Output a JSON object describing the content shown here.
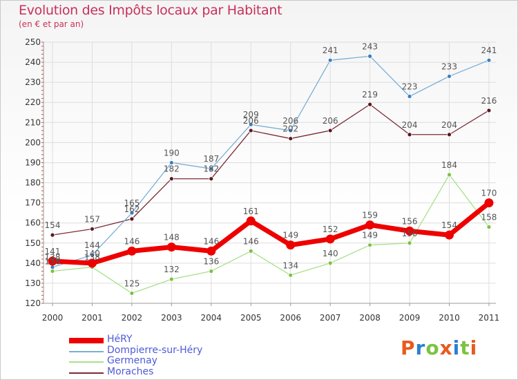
{
  "header": {
    "title": "Evolution des Impôts locaux par Habitant",
    "subtitle": "(en € et par an)"
  },
  "logo": {
    "text": "Proxiti",
    "colors": [
      "#e85a1e",
      "#2a7fd0",
      "#7cc242",
      "#e85a1e",
      "#2a7fd0",
      "#7cc242",
      "#e85a1e"
    ]
  },
  "chart_data": {
    "type": "line",
    "title": "Evolution des Impôts locaux par Habitant",
    "subtitle": "(en € et par an)",
    "xlabel": "",
    "ylabel": "",
    "ylim": [
      120,
      250
    ],
    "yticks": [
      "120",
      "130",
      "140",
      "150",
      "160",
      "170",
      "180",
      "190",
      "200",
      "210",
      "220",
      "230",
      "240",
      "250"
    ],
    "categories": [
      "2000",
      "2001",
      "2002",
      "2003",
      "2004",
      "2005",
      "2006",
      "2007",
      "2008",
      "2009",
      "2010",
      "2011"
    ],
    "legend_position": "bottom-left",
    "series": [
      {
        "name": "Moraches",
        "color": "#7a2a35",
        "marker": "#5a1820",
        "values": [
          154,
          157,
          162,
          182,
          182,
          206,
          202,
          206,
          219,
          204,
          204,
          216
        ],
        "labels": [
          "154",
          "157",
          "162",
          "182",
          "182",
          "206",
          "202",
          "206",
          "219",
          "204",
          "204",
          "216"
        ]
      },
      {
        "name": "Dompierre-sur-Héry",
        "color": "#7aaed6",
        "marker": "#3a7fc0",
        "values": [
          138,
          144,
          165,
          190,
          187,
          209,
          206,
          241,
          243,
          223,
          233,
          241
        ],
        "labels": [
          "138",
          "144",
          "165",
          "190",
          "187",
          "209",
          "206",
          "241",
          "243",
          "223",
          "233",
          "241"
        ]
      },
      {
        "name": "Germenay",
        "color": "#a8e08a",
        "marker": "#7cc242",
        "values": [
          136,
          138,
          125,
          132,
          136,
          146,
          134,
          140,
          149,
          150,
          184,
          158
        ],
        "labels": [
          "136",
          "138",
          "125",
          "132",
          "136",
          "146",
          "134",
          "140",
          "149",
          "150",
          "184",
          "158"
        ]
      },
      {
        "name": "HéRY",
        "color": "#ee0000",
        "marker": "#ee0000",
        "values": [
          141,
          140,
          146,
          148,
          146,
          161,
          149,
          152,
          159,
          156,
          154,
          170
        ],
        "labels": [
          "141",
          "140",
          "146",
          "148",
          "146",
          "161",
          "149",
          "152",
          "159",
          "156",
          "154",
          "170"
        ]
      }
    ],
    "legend": [
      "HéRY",
      "Dompierre-sur-Héry",
      "Germenay",
      "Moraches"
    ]
  }
}
